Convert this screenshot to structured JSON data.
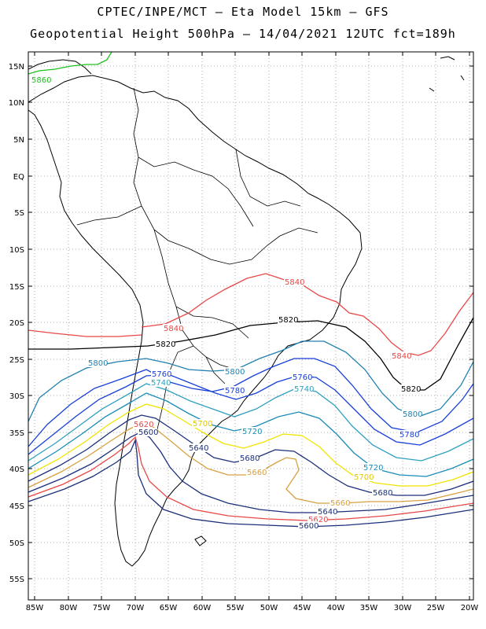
{
  "title_line1": "CPTEC/INPE/MCT —  Eta Model 15km — GFS",
  "title_line2": "Geopotential Height 500hPa — 14/04/2021 12UTC fct=189h",
  "lat_labels": [
    "15N",
    "10N",
    "5N",
    "EQ",
    "5S",
    "10S",
    "15S",
    "20S",
    "25S",
    "30S",
    "35S",
    "40S",
    "45S",
    "50S",
    "55S"
  ],
  "lon_labels": [
    "85W",
    "80W",
    "75W",
    "70W",
    "65W",
    "60W",
    "55W",
    "50W",
    "45W",
    "40W",
    "35W",
    "30W",
    "25W",
    "20W"
  ],
  "contour_colors": {
    "5560": "#1b2f7a",
    "5580": "#1b2f7a",
    "5600": "#1b2f7a",
    "5620": "#e84848",
    "5640": "#1b2f7a",
    "5660": "#d8a040",
    "5680": "#1b2f7a",
    "5700": "#f0e400",
    "5720": "#1a8cb8",
    "5740": "#2ea0c0",
    "5760": "#1840d8",
    "5780": "#1840d8",
    "5800": "#2080b0",
    "5820": "#000000",
    "5840": "#e84848",
    "5860": "#20c020"
  },
  "contour_labels": [
    {
      "text": "5860",
      "color": "#20c020"
    },
    {
      "text": "5840",
      "color": "#e84848"
    },
    {
      "text": "5840",
      "color": "#e84848"
    },
    {
      "text": "5840",
      "color": "#e84848"
    },
    {
      "text": "5820",
      "color": "#000000"
    },
    {
      "text": "5820",
      "color": "#000000"
    },
    {
      "text": "5820",
      "color": "#000000"
    },
    {
      "text": "5800",
      "color": "#2080b0"
    },
    {
      "text": "5800",
      "color": "#2080b0"
    },
    {
      "text": "5800",
      "color": "#2080b0"
    },
    {
      "text": "5780",
      "color": "#1840d8"
    },
    {
      "text": "5780",
      "color": "#1840d8"
    },
    {
      "text": "5760",
      "color": "#1840d8"
    },
    {
      "text": "5760",
      "color": "#1840d8"
    },
    {
      "text": "5740",
      "color": "#2ea0c0"
    },
    {
      "text": "5740",
      "color": "#2ea0c0"
    },
    {
      "text": "5720",
      "color": "#1a8cb8"
    },
    {
      "text": "5720",
      "color": "#1a8cb8"
    },
    {
      "text": "5700",
      "color": "#e0c800"
    },
    {
      "text": "5700",
      "color": "#e0c800"
    },
    {
      "text": "5680",
      "color": "#1b2f7a"
    },
    {
      "text": "5680",
      "color": "#1b2f7a"
    },
    {
      "text": "5660",
      "color": "#d8a040"
    },
    {
      "text": "5660",
      "color": "#d8a040"
    },
    {
      "text": "5640",
      "color": "#1b2f7a"
    },
    {
      "text": "5640",
      "color": "#1b2f7a"
    },
    {
      "text": "5620",
      "color": "#e84848"
    },
    {
      "text": "5620",
      "color": "#e84848"
    },
    {
      "text": "5600",
      "color": "#1b2f7a"
    },
    {
      "text": "5600",
      "color": "#1b2f7a"
    }
  ]
}
